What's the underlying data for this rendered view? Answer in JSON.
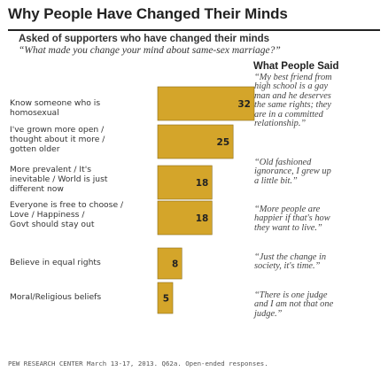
{
  "header": {
    "title": "Why People Have Changed Their Minds",
    "subtitle": "Asked of supporters who have changed their minds",
    "question": "“What made you change your mind about same-sex marriage?”"
  },
  "quotes_header": "What People Said",
  "footer": "PEW RESEARCH CENTER March 13-17, 2013. Q62a. Open-ended responses.",
  "colors": {
    "bar": "#D4A52A",
    "bar_outline": "#8a6d18",
    "text": "#333333"
  },
  "chart_data": {
    "type": "bar",
    "orientation": "horizontal",
    "categories": [
      "Know someone who is\nhomosexual",
      "I've grown more open /\nthought about it more /\ngotten older",
      "More prevalent / It's\ninevitable / World is just\ndifferent now",
      "Everyone is free to choose /\nLove / Happiness /\nGovt should stay out",
      "Believe in equal rights",
      "Moral/Religious beliefs"
    ],
    "values": [
      32,
      25,
      18,
      18,
      8,
      5
    ],
    "value_labels": [
      "32",
      "25",
      "18",
      "18",
      "8",
      "5"
    ],
    "title": "Why People Have Changed Their Minds",
    "xlabel": "",
    "ylabel": "",
    "xlim": [
      0,
      32
    ],
    "grid": false
  },
  "quotes": [
    "“My best friend from\nhigh school is a gay\nman and he deserves\nthe same rights; they\nare in a committed\nrelationship.”",
    "“Old fashioned\nignorance, I grew up\na little bit.”",
    "“More people are\nhappier if that's how\nthey want to live.”",
    "“Just the change in\nsociety, it's time.”",
    "“There is one judge\nand I am not that one\njudge.”"
  ]
}
